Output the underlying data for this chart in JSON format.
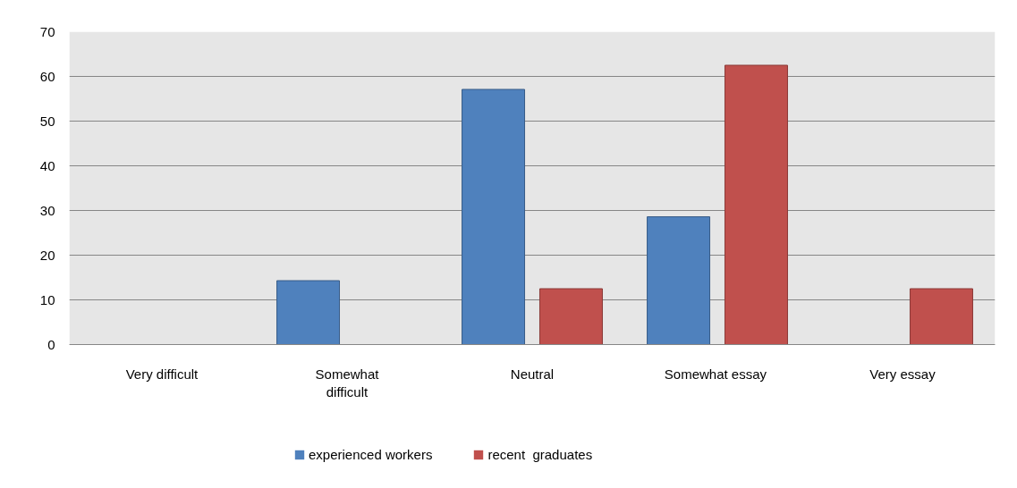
{
  "chart_data": {
    "type": "bar",
    "categories": [
      "Very difficult",
      "Somewhat difficult",
      "Neutral",
      "Somewhat  essay",
      "Very essay"
    ],
    "series": [
      {
        "name": "experienced workers",
        "color": "#4f81bd",
        "values": [
          0,
          14.3,
          57.1,
          28.6,
          0
        ]
      },
      {
        "name": "recent  graduates",
        "color": "#c0504d",
        "values": [
          0,
          0,
          12.5,
          62.5,
          12.5
        ]
      }
    ],
    "ylim": [
      0,
      70
    ],
    "yticks": [
      0,
      10,
      20,
      30,
      40,
      50,
      60,
      70
    ],
    "grid": "y",
    "legend": "bottom"
  }
}
